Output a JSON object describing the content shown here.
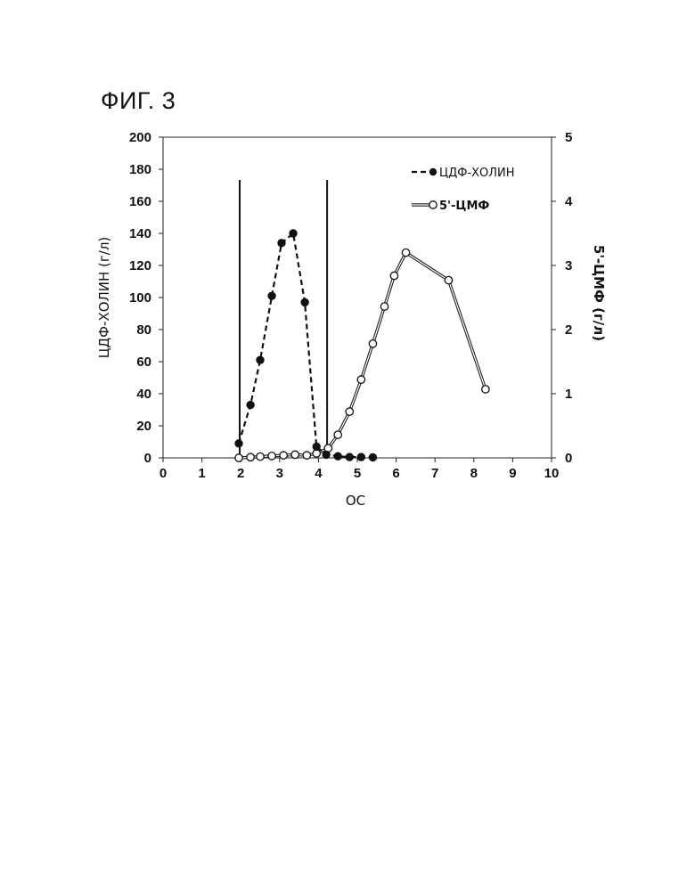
{
  "figure": {
    "title": "ФИГ. 3"
  },
  "chart_data": {
    "type": "line",
    "xlabel": "ОС",
    "ylabel_left": "ЦДФ-ХОЛИН (г/л)",
    "ylabel_right": "5'-ЦМФ (г/л)",
    "xlim": [
      0,
      10
    ],
    "ylim_left": [
      0,
      200
    ],
    "ylim_right": [
      0,
      5
    ],
    "x_ticks": [
      0,
      1,
      2,
      3,
      4,
      5,
      6,
      7,
      8,
      9,
      10
    ],
    "y_ticks_left": [
      0,
      20,
      40,
      60,
      80,
      100,
      120,
      140,
      160,
      180,
      200
    ],
    "y_ticks_right": [
      0,
      1,
      2,
      3,
      4,
      5
    ],
    "grid": false,
    "legend_position": "top-right",
    "vertical_lines_x": [
      1.95,
      4.2
    ],
    "series": [
      {
        "name": "ЦДФ-ХОЛИН",
        "axis": "left",
        "style": "dashed",
        "marker": "filled-circle",
        "x": [
          1.95,
          2.25,
          2.5,
          2.8,
          3.05,
          3.35,
          3.65,
          3.95,
          4.2,
          4.5,
          4.8,
          5.1,
          5.4
        ],
        "y": [
          9,
          33,
          61,
          101,
          134,
          140,
          97,
          7,
          2,
          1,
          0.5,
          0.5,
          0.3
        ]
      },
      {
        "name": "5'-ЦМФ",
        "axis": "right",
        "style": "double-solid",
        "marker": "open-circle",
        "x": [
          1.95,
          2.25,
          2.5,
          2.8,
          3.1,
          3.4,
          3.7,
          3.95,
          4.25,
          4.5,
          4.8,
          5.1,
          5.4,
          5.7,
          5.95,
          6.25,
          7.35,
          8.3
        ],
        "y": [
          0,
          0.01,
          0.02,
          0.03,
          0.04,
          0.05,
          0.04,
          0.07,
          0.15,
          0.36,
          0.72,
          1.22,
          1.78,
          2.36,
          2.84,
          3.2,
          2.77,
          1.07
        ]
      }
    ]
  }
}
